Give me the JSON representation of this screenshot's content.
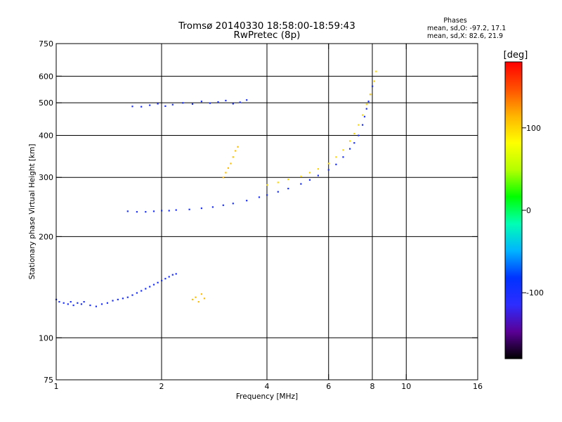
{
  "chart_data": {
    "type": "scatter",
    "title": "Tromsø 20140330 18:58:00-18:59:43",
    "subtitle": "RwPretec (8p)",
    "stats": {
      "header": "Phases",
      "line1": "mean, sd,O: -97.2, 17.1",
      "line2": "mean, sd,X:  82.6, 21.9"
    },
    "xlabel": "Frequency [MHz]",
    "ylabel": "Stationary phase Virtual Height [km]",
    "x_scale": "log",
    "y_scale": "log",
    "xlim": [
      1,
      16
    ],
    "ylim": [
      75,
      750
    ],
    "grid": true,
    "x_ticks": [
      1,
      2,
      4,
      6,
      8,
      10,
      16
    ],
    "x_gridlines": [
      2,
      4,
      6,
      8,
      10
    ],
    "y_ticks": [
      75,
      100,
      200,
      300,
      400,
      500,
      600,
      750
    ],
    "y_gridlines": [
      100,
      200,
      300,
      400,
      500,
      600
    ],
    "colorbar": {
      "label": "[deg]",
      "range": [
        -180,
        180
      ],
      "ticks": [
        -100,
        0,
        100
      ],
      "colors": [
        "#000000",
        "#5a0096",
        "#2d2dff",
        "#0032ff",
        "#00b4ff",
        "#00ffb4",
        "#00ff00",
        "#b4ff00",
        "#ffff00",
        "#ffb400",
        "#ff5000",
        "#ff0000"
      ]
    },
    "series": [
      {
        "x": [
          1.0,
          1.02,
          1.05,
          1.08,
          1.1,
          1.12,
          1.15,
          1.18,
          1.2,
          1.25,
          1.3,
          1.35,
          1.4,
          1.45,
          1.5,
          1.55,
          1.6,
          1.65,
          1.7,
          1.75,
          1.8,
          1.85,
          1.9,
          1.95,
          2.0,
          2.05,
          2.1,
          2.15,
          2.2
        ],
        "y": [
          130,
          128,
          127,
          126,
          128,
          125,
          127,
          126,
          128,
          125,
          124,
          126,
          127,
          129,
          130,
          131,
          132,
          134,
          136,
          138,
          140,
          142,
          144,
          146,
          148,
          150,
          152,
          154,
          155
        ],
        "phase": -100
      },
      {
        "x": [
          1.6,
          1.7,
          1.8,
          1.9,
          2.0,
          2.1,
          2.2,
          2.4,
          2.6,
          2.8,
          3.0,
          3.2,
          3.5,
          3.8,
          4.0,
          4.3,
          4.6,
          5.0,
          5.3,
          5.6,
          6.0,
          6.3,
          6.6,
          6.9,
          7.1,
          7.3,
          7.5,
          7.6,
          7.7,
          7.8,
          7.9,
          8.0
        ],
        "y": [
          238,
          237,
          237,
          238,
          239,
          239,
          240,
          241,
          243,
          245,
          248,
          251,
          256,
          262,
          266,
          272,
          278,
          287,
          295,
          304,
          316,
          328,
          345,
          365,
          380,
          400,
          430,
          455,
          480,
          505,
          530,
          560
        ],
        "phase": -100
      },
      {
        "x": [
          4.0,
          4.3,
          4.6,
          5.0,
          5.3,
          5.6,
          6.0,
          6.3,
          6.6,
          6.9,
          7.1,
          7.3,
          7.5,
          7.7,
          7.9,
          8.1,
          8.2
        ],
        "y": [
          285,
          290,
          296,
          302,
          310,
          318,
          330,
          345,
          362,
          385,
          405,
          430,
          460,
          495,
          530,
          580,
          620
        ],
        "phase": 100
      },
      {
        "x": [
          1.65,
          1.75,
          1.85,
          1.95,
          2.05,
          2.15,
          2.3,
          2.45,
          2.6,
          2.75,
          2.9,
          3.05,
          3.2,
          3.35,
          3.5
        ],
        "y": [
          488,
          487,
          492,
          497,
          489,
          494,
          500,
          496,
          505,
          499,
          503,
          508,
          497,
          502,
          510
        ],
        "phase": -100
      },
      {
        "x": [
          3.0,
          3.05,
          3.1,
          3.15,
          3.2,
          3.25,
          3.3
        ],
        "y": [
          300,
          310,
          320,
          330,
          345,
          360,
          370
        ],
        "phase": 110
      },
      {
        "x": [
          2.45,
          2.5,
          2.55,
          2.6,
          2.65
        ],
        "y": [
          130,
          132,
          128,
          135,
          131
        ],
        "phase": 110
      }
    ]
  }
}
